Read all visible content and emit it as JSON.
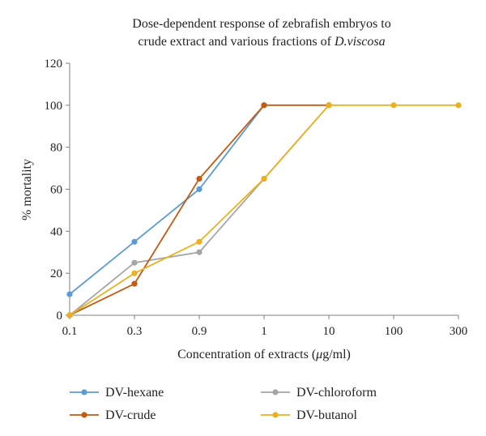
{
  "chart_data": {
    "type": "line",
    "title_line1": "Dose-dependent response of zebrafish embryos to",
    "title_line2_prefix": "crude extract and various fractions of ",
    "title_line2_italic": "D.viscosa",
    "xlabel_prefix": "Concentration of extracts (",
    "xlabel_mu": "μ",
    "xlabel_suffix": "g/ml)",
    "ylabel": "% mortality",
    "ylim": [
      0,
      120
    ],
    "yticks": [
      "0",
      "20",
      "40",
      "60",
      "80",
      "100",
      "120"
    ],
    "categories": [
      "0.1",
      "0.3",
      "0.9",
      "1",
      "10",
      "100",
      "300"
    ],
    "grid": false,
    "legend_position": "bottom",
    "series": [
      {
        "name": "DV-hexane",
        "color": "#5b9bd5",
        "values": [
          10,
          35,
          60,
          100,
          null,
          null,
          null
        ]
      },
      {
        "name": "DV-chloroform",
        "color": "#a5a5a5",
        "values": [
          0,
          25,
          30,
          65,
          100,
          null,
          null
        ]
      },
      {
        "name": "DV-crude",
        "color": "#c55a11",
        "values": [
          0,
          15,
          65,
          100,
          100,
          null,
          null
        ]
      },
      {
        "name": "DV-butanol",
        "color": "#ecb01f",
        "values": [
          0,
          20,
          35,
          65,
          100,
          100,
          100
        ]
      }
    ]
  }
}
